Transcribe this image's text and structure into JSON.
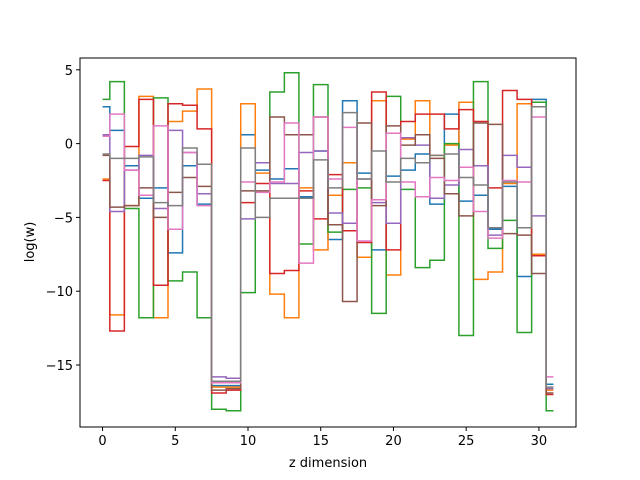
{
  "chart_data": {
    "type": "line",
    "drawstyle": "steps-mid",
    "title": "",
    "xlabel": "z dimension",
    "ylabel": "log(w)",
    "xlim": [
      -1.55,
      32.55
    ],
    "ylim": [
      -19.2,
      5.8
    ],
    "xticks": [
      0,
      5,
      10,
      15,
      20,
      25,
      30
    ],
    "xtick_labels": [
      "0",
      "5",
      "10",
      "15",
      "20",
      "25",
      "30"
    ],
    "yticks": [
      -15,
      -10,
      -5,
      0,
      5
    ],
    "ytick_labels": [
      "−15",
      "−10",
      "−5",
      "0",
      "5"
    ],
    "grid": false,
    "x": [
      0,
      1,
      2,
      3,
      4,
      5,
      6,
      7,
      8,
      9,
      10,
      11,
      12,
      13,
      14,
      15,
      16,
      17,
      18,
      19,
      20,
      21,
      22,
      23,
      24,
      25,
      26,
      27,
      28,
      29,
      30,
      31
    ],
    "series": [
      {
        "color": "#1f77b4",
        "values": [
          2.5,
          0.9,
          -1.5,
          -3.7,
          -3.0,
          -7.4,
          -1.5,
          -4.1,
          -16.4,
          -16.4,
          0.6,
          -1.8,
          -2.4,
          -1.7,
          -3.6,
          -0.5,
          -6.5,
          2.9,
          -2.0,
          -7.2,
          -2.2,
          -1.8,
          -0.7,
          -4.1,
          2.0,
          -3.9,
          -3.5,
          -5.8,
          -2.9,
          -9.0,
          3.0,
          -16.3
        ]
      },
      {
        "color": "#ff7f0e",
        "values": [
          -2.4,
          -11.6,
          -4.2,
          3.2,
          -11.8,
          1.5,
          2.2,
          3.7,
          -16.5,
          -16.5,
          2.7,
          -2.0,
          -10.2,
          -11.8,
          -3.0,
          -7.2,
          -3.5,
          -1.3,
          -7.7,
          2.9,
          -8.9,
          0.3,
          2.9,
          -0.8,
          -0.1,
          2.8,
          -9.2,
          -8.7,
          -2.7,
          2.7,
          -7.5,
          -16.7
        ]
      },
      {
        "color": "#2ca02c",
        "values": [
          3.0,
          4.2,
          -4.4,
          -11.8,
          3.1,
          -9.3,
          -8.7,
          -11.8,
          -18.0,
          -18.1,
          -10.1,
          -1.3,
          3.5,
          4.8,
          -6.8,
          4.0,
          -6.0,
          -3.1,
          -3.0,
          -11.5,
          3.2,
          -3.1,
          -8.4,
          -7.9,
          0.0,
          -13.0,
          4.2,
          -7.1,
          -5.2,
          -12.8,
          2.8,
          -18.1
        ]
      },
      {
        "color": "#d62728",
        "values": [
          -2.5,
          -12.7,
          -0.2,
          3.0,
          -9.6,
          2.7,
          2.6,
          1.0,
          -16.9,
          -16.7,
          -4.0,
          -2.7,
          -8.8,
          -8.6,
          -3.2,
          -5.1,
          -2.1,
          -5.9,
          -6.7,
          3.5,
          -7.2,
          1.5,
          2.0,
          2.0,
          1.0,
          2.3,
          1.5,
          -3.0,
          3.6,
          3.0,
          -7.6,
          -17.0
        ]
      },
      {
        "color": "#9467bd",
        "values": [
          0.6,
          -4.6,
          -1.8,
          -0.8,
          -4.4,
          0.9,
          -0.6,
          -3.4,
          -15.8,
          -15.9,
          -5.1,
          -1.3,
          -2.7,
          -2.7,
          -0.6,
          -0.5,
          -4.7,
          -5.4,
          -2.4,
          -4.0,
          -5.4,
          0.4,
          -0.1,
          -3.7,
          -2.8,
          -0.4,
          -1.5,
          -6.2,
          -0.8,
          -1.6,
          -4.9,
          -16.6
        ]
      },
      {
        "color": "#8c564b",
        "values": [
          -0.8,
          -4.3,
          -4.2,
          -3.0,
          -5.0,
          -3.3,
          -2.3,
          -2.9,
          -16.7,
          -16.6,
          -3.2,
          -3.2,
          1.8,
          0.6,
          0.6,
          1.8,
          -5.5,
          -10.7,
          1.4,
          -4.2,
          1.2,
          -0.1,
          0.6,
          -1.0,
          -3.4,
          -4.9,
          1.4,
          1.3,
          -6.1,
          -6.2,
          -8.8,
          -16.9
        ]
      },
      {
        "color": "#e377c2",
        "values": [
          0.5,
          2.0,
          -1.8,
          -3.5,
          1.2,
          -5.8,
          -0.6,
          -4.2,
          -16.2,
          -16.2,
          -2.6,
          -3.3,
          -2.6,
          1.4,
          -8.1,
          1.8,
          -2.4,
          1.1,
          -6.6,
          -3.8,
          0.7,
          -2.6,
          -3.6,
          -2.3,
          -2.5,
          -1.6,
          -4.6,
          -6.4,
          -2.5,
          -2.6,
          1.8,
          -15.8
        ]
      },
      {
        "color": "#7f7f7f",
        "values": [
          -0.7,
          -1.0,
          -1.0,
          -0.9,
          -4.0,
          -4.2,
          -0.3,
          -1.4,
          -16.1,
          -16.1,
          -0.3,
          -5.0,
          -3.7,
          -3.7,
          -3.7,
          -1.1,
          -3.0,
          2.1,
          -2.4,
          -0.5,
          -2.6,
          -1.0,
          -1.3,
          -0.8,
          -0.7,
          -2.3,
          -2.8,
          -5.7,
          -2.6,
          -5.7,
          2.5,
          -16.5
        ]
      }
    ]
  }
}
